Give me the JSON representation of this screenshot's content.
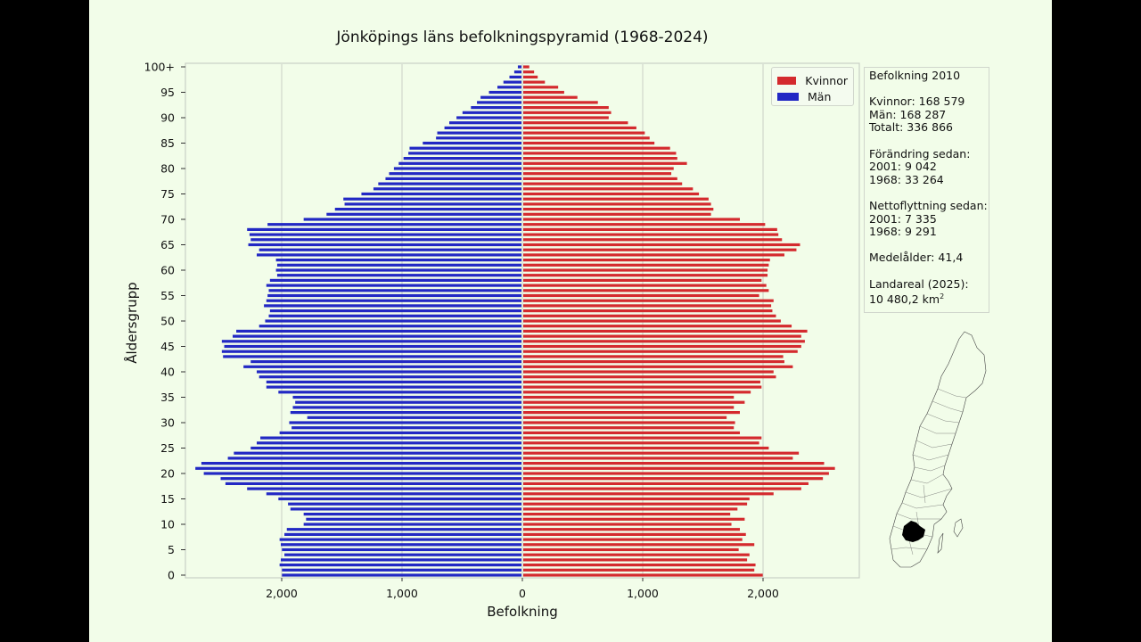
{
  "colors": {
    "women": "#d42a2e",
    "men": "#2228c4",
    "background": "#f2fde9",
    "grid": "#c9cfc5",
    "highlight_region": "#000000"
  },
  "chart_data": {
    "type": "bar",
    "orientation": "horizontal",
    "title": "Jönköpings läns befolkningspyramid (1968-2024)",
    "xlabel": "Befolkning",
    "ylabel": "Åldersgrupp",
    "x_tick_labels": [
      "2,000",
      "1,000",
      "0",
      "1,000",
      "2,000"
    ],
    "x_tick_values": [
      -2000,
      -1000,
      0,
      1000,
      2000
    ],
    "xlim": [
      -2800,
      2800
    ],
    "y_tick_labels": [
      "0",
      "5",
      "10",
      "15",
      "20",
      "25",
      "30",
      "35",
      "40",
      "45",
      "50",
      "55",
      "60",
      "65",
      "70",
      "75",
      "80",
      "85",
      "90",
      "95",
      "100+"
    ],
    "y_tick_values": [
      0,
      5,
      10,
      15,
      20,
      25,
      30,
      35,
      40,
      45,
      50,
      55,
      60,
      65,
      70,
      75,
      80,
      85,
      90,
      95,
      100
    ],
    "categories": [
      "0",
      "1",
      "2",
      "3",
      "4",
      "5",
      "6",
      "7",
      "8",
      "9",
      "10",
      "11",
      "12",
      "13",
      "14",
      "15",
      "16",
      "17",
      "18",
      "19",
      "20",
      "21",
      "22",
      "23",
      "24",
      "25",
      "26",
      "27",
      "28",
      "29",
      "30",
      "31",
      "32",
      "33",
      "34",
      "35",
      "36",
      "37",
      "38",
      "39",
      "40",
      "41",
      "42",
      "43",
      "44",
      "45",
      "46",
      "47",
      "48",
      "49",
      "50",
      "51",
      "52",
      "53",
      "54",
      "55",
      "56",
      "57",
      "58",
      "59",
      "60",
      "61",
      "62",
      "63",
      "64",
      "65",
      "66",
      "67",
      "68",
      "69",
      "70",
      "71",
      "72",
      "73",
      "74",
      "75",
      "76",
      "77",
      "78",
      "79",
      "80",
      "81",
      "82",
      "83",
      "84",
      "85",
      "86",
      "87",
      "88",
      "89",
      "90",
      "91",
      "92",
      "93",
      "94",
      "95",
      "96",
      "97",
      "98",
      "99",
      "100+"
    ],
    "grid": "x",
    "legend_position": "top-right",
    "series": [
      {
        "name": "Kvinnor",
        "color": "#d42a2e",
        "values": [
          1990,
          1920,
          1930,
          1860,
          1880,
          1790,
          1920,
          1820,
          1850,
          1800,
          1730,
          1840,
          1720,
          1780,
          1860,
          1880,
          2080,
          2310,
          2370,
          2490,
          2540,
          2590,
          2500,
          2240,
          2290,
          2040,
          1960,
          1980,
          1800,
          1750,
          1760,
          1690,
          1800,
          1750,
          1840,
          1750,
          1890,
          1980,
          1970,
          2100,
          2080,
          2240,
          2170,
          2160,
          2280,
          2310,
          2340,
          2310,
          2360,
          2230,
          2140,
          2100,
          2070,
          2060,
          2080,
          1960,
          2040,
          2020,
          1980,
          2030,
          2030,
          2040,
          2050,
          2170,
          2270,
          2300,
          2150,
          2120,
          2110,
          2010,
          1800,
          1560,
          1580,
          1560,
          1540,
          1460,
          1410,
          1320,
          1280,
          1230,
          1250,
          1360,
          1280,
          1270,
          1220,
          1090,
          1050,
          1010,
          940,
          870,
          710,
          730,
          710,
          620,
          450,
          340,
          290,
          180,
          120,
          90,
          50
        ],
        "note": "bars per single-year age, drawn to the right of the center axis"
      },
      {
        "name": "Män",
        "color": "#2228c4",
        "values": [
          1990,
          1990,
          2010,
          2000,
          1970,
          1990,
          2000,
          2010,
          1970,
          1950,
          1810,
          1790,
          1810,
          1920,
          1940,
          2020,
          2120,
          2280,
          2460,
          2500,
          2640,
          2710,
          2660,
          2440,
          2390,
          2250,
          2200,
          2170,
          2010,
          1910,
          1930,
          1780,
          1920,
          1900,
          1880,
          1900,
          2020,
          2120,
          2120,
          2180,
          2200,
          2310,
          2250,
          2480,
          2490,
          2470,
          2490,
          2400,
          2370,
          2180,
          2130,
          2100,
          2090,
          2140,
          2120,
          2110,
          2100,
          2120,
          2090,
          2030,
          2040,
          2030,
          2040,
          2200,
          2180,
          2270,
          2250,
          2260,
          2280,
          2110,
          1810,
          1620,
          1550,
          1470,
          1480,
          1330,
          1230,
          1190,
          1130,
          1100,
          1060,
          1020,
          980,
          940,
          930,
          820,
          710,
          700,
          640,
          600,
          540,
          490,
          420,
          370,
          340,
          270,
          200,
          150,
          100,
          60,
          30
        ],
        "note": "bars per single-year age, drawn to the left of the center axis"
      }
    ]
  },
  "infobox": {
    "year_line": "Befolkning 2010",
    "women_line": "Kvinnor: 168 579",
    "men_line": "Män: 168 287",
    "total_line": "Totalt: 336 866",
    "change_header": "Förändring sedan:",
    "change_2001": "2001: 9 042",
    "change_1968": "1968: 33 264",
    "net_header": "Nettoflyttning sedan:",
    "net_2001": "2001: 7 335",
    "net_1968": "1968: 9 291",
    "median_age": "Medelålder: 41,4",
    "area_header": "Landareal (2025):",
    "area_value": "10 480,2 km",
    "area_unit_sup": "2"
  },
  "legend": {
    "women_label": "Kvinnor",
    "men_label": "Män"
  },
  "map": {
    "country": "Sverige",
    "highlighted_region": "Jönköpings län"
  }
}
